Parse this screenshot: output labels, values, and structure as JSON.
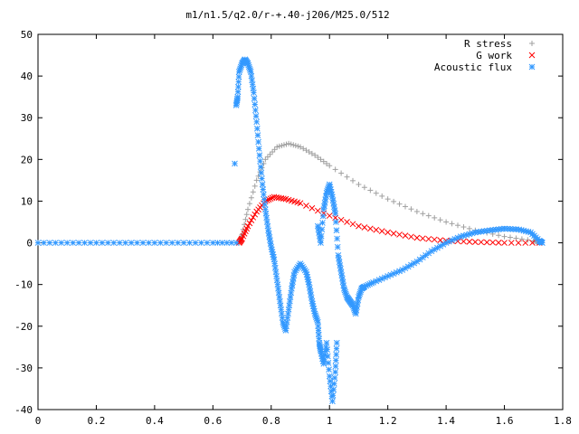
{
  "chart_data": {
    "type": "scatter",
    "title": "m1/n1.5/q2.0/r-+.40-j206/M25.0/512",
    "xlabel": "",
    "ylabel": "",
    "xlim": [
      0,
      1.8
    ],
    "ylim": [
      -40,
      50
    ],
    "xticks": [
      "0",
      "0.2",
      "0.4",
      "0.6",
      "0.8",
      "1",
      "1.2",
      "1.4",
      "1.6",
      "1.8"
    ],
    "yticks": [
      "50",
      "40",
      "30",
      "20",
      "10",
      "0",
      "-10",
      "-20",
      "-30",
      "-40"
    ],
    "legend_position": "top-right",
    "grid": false,
    "series": [
      {
        "name": "R stress",
        "marker": "+",
        "color": "#a0a0a0",
        "points": [
          [
            0.69,
            0
          ],
          [
            0.7,
            2
          ],
          [
            0.72,
            8
          ],
          [
            0.75,
            15
          ],
          [
            0.78,
            20
          ],
          [
            0.82,
            23
          ],
          [
            0.86,
            23.8
          ],
          [
            0.9,
            23
          ],
          [
            0.95,
            21
          ],
          [
            1.0,
            18.5
          ],
          [
            1.1,
            14
          ],
          [
            1.2,
            10.5
          ],
          [
            1.3,
            7.5
          ],
          [
            1.4,
            5
          ],
          [
            1.5,
            3
          ],
          [
            1.6,
            1.5
          ],
          [
            1.7,
            0.5
          ],
          [
            1.72,
            0
          ]
        ]
      },
      {
        "name": "G work",
        "marker": "x",
        "color": "#ff0000",
        "points": [
          [
            0.69,
            0
          ],
          [
            0.7,
            1
          ],
          [
            0.72,
            4
          ],
          [
            0.75,
            7.5
          ],
          [
            0.78,
            10
          ],
          [
            0.81,
            11
          ],
          [
            0.85,
            10.5
          ],
          [
            0.9,
            9.5
          ],
          [
            1.0,
            6.5
          ],
          [
            1.1,
            4
          ],
          [
            1.2,
            2.5
          ],
          [
            1.3,
            1.2
          ],
          [
            1.4,
            0.5
          ],
          [
            1.5,
            0.2
          ],
          [
            1.6,
            0
          ],
          [
            1.72,
            0
          ]
        ]
      },
      {
        "name": "Acoustic flux",
        "marker": "*",
        "color": "#3399ff",
        "points": [
          [
            0,
            0
          ],
          [
            0.1,
            0
          ],
          [
            0.2,
            0
          ],
          [
            0.3,
            0
          ],
          [
            0.4,
            0
          ],
          [
            0.5,
            0
          ],
          [
            0.6,
            0
          ],
          [
            0.68,
            0
          ],
          [
            0.675,
            19
          ],
          [
            0.68,
            33
          ],
          [
            0.685,
            35
          ],
          [
            0.69,
            41
          ],
          [
            0.7,
            43
          ],
          [
            0.71,
            44
          ],
          [
            0.72,
            43
          ],
          [
            0.73,
            41
          ],
          [
            0.74,
            36
          ],
          [
            0.75,
            29
          ],
          [
            0.76,
            21
          ],
          [
            0.77,
            14
          ],
          [
            0.78,
            8
          ],
          [
            0.79,
            3
          ],
          [
            0.8,
            -1
          ],
          [
            0.81,
            -4
          ],
          [
            0.82,
            -9
          ],
          [
            0.83,
            -14
          ],
          [
            0.84,
            -19
          ],
          [
            0.85,
            -21
          ],
          [
            0.86,
            -16
          ],
          [
            0.87,
            -11
          ],
          [
            0.88,
            -7
          ],
          [
            0.9,
            -5
          ],
          [
            0.92,
            -7
          ],
          [
            0.93,
            -10
          ],
          [
            0.94,
            -14
          ],
          [
            0.95,
            -17
          ],
          [
            0.96,
            -19
          ],
          [
            0.965,
            -24
          ],
          [
            0.97,
            -26
          ],
          [
            0.98,
            -29
          ],
          [
            0.99,
            -24
          ],
          [
            1.0,
            -32
          ],
          [
            1.01,
            -38
          ],
          [
            1.02,
            -31
          ],
          [
            1.025,
            -24
          ],
          [
            0.96,
            4
          ],
          [
            0.97,
            0
          ],
          [
            0.98,
            8
          ],
          [
            0.99,
            12
          ],
          [
            1.0,
            14
          ],
          [
            1.01,
            11
          ],
          [
            1.02,
            7
          ],
          [
            1.03,
            -3
          ],
          [
            1.04,
            -7
          ],
          [
            1.05,
            -11
          ],
          [
            1.06,
            -13
          ],
          [
            1.07,
            -14
          ],
          [
            1.08,
            -15
          ],
          [
            1.09,
            -17
          ],
          [
            1.1,
            -13
          ],
          [
            1.11,
            -11
          ],
          [
            1.12,
            -10.5
          ],
          [
            1.15,
            -9.5
          ],
          [
            1.2,
            -8
          ],
          [
            1.25,
            -6.5
          ],
          [
            1.3,
            -4.5
          ],
          [
            1.35,
            -2
          ],
          [
            1.4,
            0
          ],
          [
            1.45,
            1.5
          ],
          [
            1.5,
            2.5
          ],
          [
            1.55,
            3
          ],
          [
            1.6,
            3.4
          ],
          [
            1.65,
            3.2
          ],
          [
            1.69,
            2.5
          ],
          [
            1.72,
            0.5
          ],
          [
            1.73,
            0
          ]
        ]
      }
    ]
  }
}
